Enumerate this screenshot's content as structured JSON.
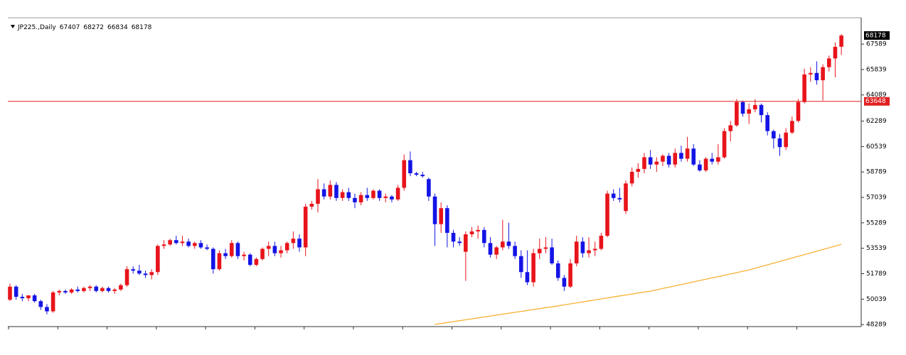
{
  "chart_data": {
    "type": "candlestick",
    "symbol": "JP225.,Daily",
    "up_color": "#e8141b",
    "down_color": "#1414e6",
    "ylim": [
      48150,
      69400
    ],
    "yticks": [
      48289,
      50039,
      51789,
      53539,
      55289,
      57039,
      58789,
      60539,
      62289,
      64089,
      65839,
      67589
    ],
    "hline": {
      "value": 63648,
      "color": "#e02020"
    },
    "ohlc": [
      [
        50000,
        51100,
        49900,
        50900
      ],
      [
        50900,
        51000,
        50000,
        50200
      ],
      [
        50200,
        50400,
        49900,
        50100
      ],
      [
        50100,
        50300,
        49900,
        50300
      ],
      [
        50300,
        50400,
        49800,
        49900
      ],
      [
        49900,
        50000,
        49300,
        49500
      ],
      [
        49500,
        49700,
        49000,
        49200
      ],
      [
        49200,
        50600,
        49100,
        50500
      ],
      [
        50500,
        50700,
        50300,
        50600
      ],
      [
        50600,
        50700,
        50400,
        50500
      ],
      [
        50500,
        50800,
        50400,
        50700
      ],
      [
        50700,
        50900,
        50500,
        50600
      ],
      [
        50600,
        50900,
        50500,
        50800
      ],
      [
        50800,
        51000,
        50600,
        50900
      ],
      [
        50900,
        51000,
        50500,
        50600
      ],
      [
        50600,
        50900,
        50500,
        50800
      ],
      [
        50800,
        50900,
        50500,
        50600
      ],
      [
        50600,
        50800,
        50400,
        50700
      ],
      [
        50700,
        51100,
        50600,
        51000
      ],
      [
        51000,
        52300,
        50900,
        52100
      ],
      [
        52100,
        52300,
        51800,
        52000
      ],
      [
        52000,
        52400,
        51700,
        51800
      ],
      [
        51800,
        52000,
        51500,
        51700
      ],
      [
        51700,
        52100,
        51400,
        51900
      ],
      [
        51900,
        53800,
        51700,
        53700
      ],
      [
        53700,
        54100,
        53500,
        53800
      ],
      [
        53800,
        54200,
        53700,
        54100
      ],
      [
        54100,
        54400,
        53800,
        53900
      ],
      [
        53900,
        54400,
        53700,
        54000
      ],
      [
        54000,
        54200,
        53600,
        53700
      ],
      [
        53700,
        54000,
        53500,
        53900
      ],
      [
        53900,
        54100,
        53500,
        53600
      ],
      [
        53600,
        53800,
        53400,
        53500
      ],
      [
        53500,
        53600,
        51800,
        52100
      ],
      [
        52100,
        53400,
        52000,
        53200
      ],
      [
        53200,
        53500,
        52800,
        53000
      ],
      [
        53000,
        54100,
        52900,
        53900
      ],
      [
        53900,
        54000,
        52800,
        53000
      ],
      [
        53000,
        53300,
        52700,
        53100
      ],
      [
        53100,
        53200,
        52300,
        52400
      ],
      [
        52400,
        52900,
        52300,
        52800
      ],
      [
        52800,
        53600,
        52700,
        53500
      ],
      [
        53500,
        54000,
        53000,
        53700
      ],
      [
        53700,
        54000,
        53000,
        53200
      ],
      [
        53200,
        53700,
        52900,
        53400
      ],
      [
        53400,
        54000,
        53200,
        53900
      ],
      [
        53900,
        54700,
        53500,
        54200
      ],
      [
        54200,
        54500,
        53300,
        53600
      ],
      [
        53600,
        56600,
        53000,
        56400
      ],
      [
        56400,
        56800,
        56200,
        56600
      ],
      [
        56600,
        58300,
        56000,
        57600
      ],
      [
        57600,
        58000,
        56900,
        57100
      ],
      [
        57100,
        58200,
        56900,
        57900
      ],
      [
        57900,
        58100,
        56800,
        57000
      ],
      [
        57000,
        57600,
        56800,
        57400
      ],
      [
        57400,
        57700,
        56800,
        57000
      ],
      [
        57000,
        57300,
        56300,
        56700
      ],
      [
        56700,
        57400,
        56500,
        57200
      ],
      [
        57200,
        57700,
        56800,
        57000
      ],
      [
        57000,
        57600,
        56900,
        57500
      ],
      [
        57500,
        57600,
        56800,
        57000
      ],
      [
        57000,
        57300,
        56700,
        57100
      ],
      [
        57100,
        57200,
        56700,
        56900
      ],
      [
        56900,
        57900,
        56800,
        57700
      ],
      [
        57700,
        60000,
        57500,
        59600
      ],
      [
        59600,
        60200,
        58500,
        58700
      ],
      [
        58700,
        58800,
        58500,
        58600
      ],
      [
        58600,
        58800,
        58400,
        58500
      ],
      [
        58300,
        58400,
        56800,
        57100
      ],
      [
        57100,
        57300,
        53700,
        55200
      ],
      [
        55200,
        56700,
        54600,
        56300
      ],
      [
        56300,
        56500,
        53600,
        54600
      ],
      [
        54600,
        54800,
        53600,
        54000
      ],
      [
        54000,
        54300,
        53700,
        53900
      ],
      [
        53300,
        54700,
        51300,
        54500
      ],
      [
        54500,
        55000,
        54300,
        54700
      ],
      [
        54700,
        55100,
        54200,
        54800
      ],
      [
        54800,
        55000,
        53600,
        53900
      ],
      [
        53900,
        54300,
        52900,
        53100
      ],
      [
        53100,
        53700,
        52800,
        53600
      ],
      [
        53600,
        55500,
        53400,
        54000
      ],
      [
        54000,
        55300,
        53500,
        53700
      ],
      [
        53700,
        54000,
        52800,
        53000
      ],
      [
        53000,
        53400,
        51500,
        51900
      ],
      [
        51900,
        53400,
        51000,
        51200
      ],
      [
        51200,
        53500,
        50900,
        53200
      ],
      [
        53200,
        54200,
        52800,
        53500
      ],
      [
        53500,
        54300,
        53200,
        53600
      ],
      [
        53600,
        54200,
        52400,
        52500
      ],
      [
        52500,
        52700,
        51300,
        51500
      ],
      [
        51500,
        51700,
        50600,
        50900
      ],
      [
        50900,
        52800,
        50800,
        52500
      ],
      [
        52500,
        54400,
        52300,
        54000
      ],
      [
        54000,
        54300,
        52900,
        53200
      ],
      [
        53200,
        54300,
        52900,
        53400
      ],
      [
        53400,
        54000,
        53000,
        53500
      ],
      [
        53500,
        54600,
        53400,
        54400
      ],
      [
        54400,
        57500,
        54300,
        57300
      ],
      [
        57300,
        57600,
        56800,
        57000
      ],
      [
        57000,
        57700,
        56700,
        56900
      ],
      [
        56100,
        58200,
        55900,
        58000
      ],
      [
        58000,
        59100,
        57800,
        58800
      ],
      [
        58800,
        59400,
        58400,
        59000
      ],
      [
        59000,
        60100,
        58700,
        59800
      ],
      [
        59800,
        60300,
        59000,
        59300
      ],
      [
        59300,
        59800,
        58800,
        59500
      ],
      [
        59500,
        60000,
        59200,
        59900
      ],
      [
        59900,
        60100,
        59100,
        59300
      ],
      [
        59300,
        60400,
        59100,
        60100
      ],
      [
        60100,
        60600,
        59500,
        59700
      ],
      [
        59700,
        61200,
        59500,
        60400
      ],
      [
        60400,
        60700,
        59200,
        59300
      ],
      [
        59300,
        59600,
        58800,
        58900
      ],
      [
        58900,
        59800,
        58800,
        59700
      ],
      [
        59700,
        60100,
        59300,
        59500
      ],
      [
        59500,
        60700,
        59300,
        59800
      ],
      [
        59800,
        61800,
        59700,
        61600
      ],
      [
        61600,
        62300,
        60900,
        62000
      ],
      [
        62000,
        63800,
        61900,
        63600
      ],
      [
        63600,
        63700,
        62600,
        62800
      ],
      [
        62800,
        63500,
        62100,
        63100
      ],
      [
        63100,
        63800,
        62900,
        63400
      ],
      [
        63400,
        63500,
        62200,
        62700
      ],
      [
        62700,
        62900,
        61300,
        61600
      ],
      [
        61600,
        61700,
        60400,
        61100
      ],
      [
        61100,
        61400,
        59900,
        60500
      ],
      [
        60500,
        61800,
        60300,
        61500
      ],
      [
        61500,
        62600,
        61400,
        62300
      ],
      [
        62300,
        63800,
        62200,
        63600
      ],
      [
        63600,
        65900,
        63500,
        65500
      ],
      [
        65500,
        66000,
        65000,
        65600
      ],
      [
        65600,
        66400,
        64800,
        65100
      ],
      [
        65100,
        66200,
        63700,
        66000
      ],
      [
        66000,
        66800,
        65700,
        66600
      ],
      [
        66600,
        67700,
        65300,
        67400
      ],
      [
        67407,
        68272,
        66834,
        68178
      ]
    ],
    "moving_average": {
      "color": "#f7b233",
      "values": [
        null,
        null,
        null,
        null,
        null,
        null,
        null,
        null,
        null,
        null,
        null,
        null,
        null,
        null,
        null,
        null,
        null,
        null,
        null,
        null,
        null,
        null,
        null,
        null,
        null,
        null,
        null,
        null,
        null,
        null,
        null,
        null,
        null,
        null,
        null,
        null,
        null,
        null,
        null,
        null,
        null,
        null,
        null,
        null,
        null,
        null,
        null,
        null,
        null,
        null,
        null,
        null,
        null,
        null,
        null,
        null,
        null,
        null,
        null,
        null,
        null,
        null,
        null,
        null,
        null,
        null,
        null,
        null,
        null,
        48300,
        48364,
        48428,
        48492,
        48556,
        48620,
        48684,
        48748,
        48812,
        48876,
        48940,
        49004,
        49068,
        49132,
        49196,
        49260,
        49324,
        49388,
        49452,
        49510,
        49578,
        49646,
        49714,
        49782,
        49850,
        49918,
        49986,
        50054,
        50122,
        50190,
        50258,
        50326,
        50394,
        50462,
        50530,
        50590,
        50681,
        50772,
        50863,
        50954,
        51045,
        51136,
        51227,
        51318,
        51409,
        51500,
        51591,
        51682,
        51773,
        51864,
        51955,
        52050,
        52167,
        52284,
        52401,
        52518,
        52635,
        52752,
        52869,
        52986,
        53103,
        53220,
        53337,
        53454,
        53571,
        53688,
        53810
      ]
    }
  }
}
